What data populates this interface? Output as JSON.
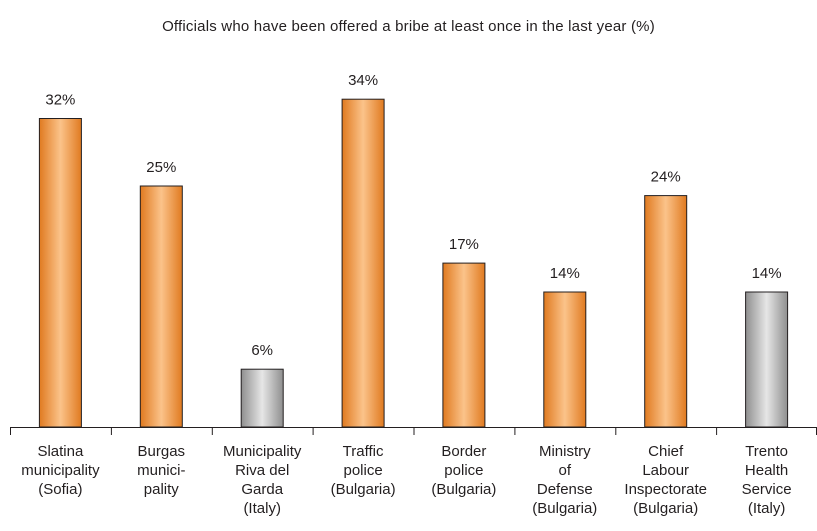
{
  "chart_data": {
    "type": "bar",
    "title": "Officials who have been offered a bribe at least once in the last year (%)",
    "xlabel": "",
    "ylabel": "",
    "ylim": [
      0,
      40
    ],
    "grid": false,
    "categories": [
      [
        "Slatina",
        "municipality",
        "(Sofia)"
      ],
      [
        "Burgas",
        "munici-",
        "pality"
      ],
      [
        "Municipality",
        "Riva del",
        "Garda",
        "(Italy)"
      ],
      [
        "Traffic",
        "police",
        "(Bulgaria)"
      ],
      [
        "Border",
        "police",
        "(Bulgaria)"
      ],
      [
        "Ministry",
        "of",
        "Defense",
        "(Bulgaria)"
      ],
      [
        "Chief",
        "Labour",
        "Inspectorate",
        "(Bulgaria)"
      ],
      [
        "Trento",
        "Health",
        "Service",
        "(Italy)"
      ]
    ],
    "values": [
      32,
      25,
      6,
      34,
      17,
      14,
      24,
      14
    ],
    "value_labels": [
      "32%",
      "25%",
      "6%",
      "34%",
      "17%",
      "14%",
      "24%",
      "14%"
    ],
    "country": [
      "Bulgaria",
      "Bulgaria",
      "Italy",
      "Bulgaria",
      "Bulgaria",
      "Bulgaria",
      "Bulgaria",
      "Italy"
    ],
    "colors": {
      "Bulgaria": "#ec8a2c",
      "Italy": "#a6a6a6",
      "axis": "#231f20"
    }
  }
}
